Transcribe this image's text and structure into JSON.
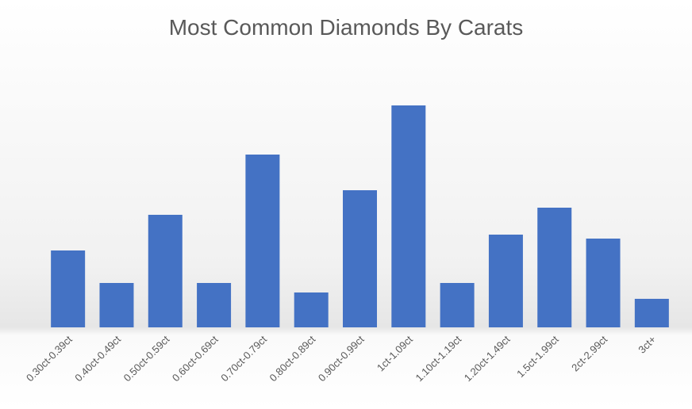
{
  "chart_data": {
    "type": "bar",
    "title": "Most Common Diamonds By Carats",
    "categories": [
      "0.30ct-0.39ct",
      "0.40ct-0.49ct",
      "0.50ct-0.59ct",
      "0.60ct-0.69ct",
      "0.70ct-0.79ct",
      "0.80ct-0.89ct",
      "0.90ct-0.99ct",
      "1ct-1.09ct",
      "1.10ct-1.19ct",
      "1.20ct-1.49ct",
      "1.5ct-1.99ct",
      "2ct-2.99ct",
      "3ct+"
    ],
    "values": [
      97,
      56,
      142,
      56,
      218,
      44,
      173,
      280,
      56,
      117,
      151,
      112,
      36
    ],
    "color": "#4472c4"
  }
}
